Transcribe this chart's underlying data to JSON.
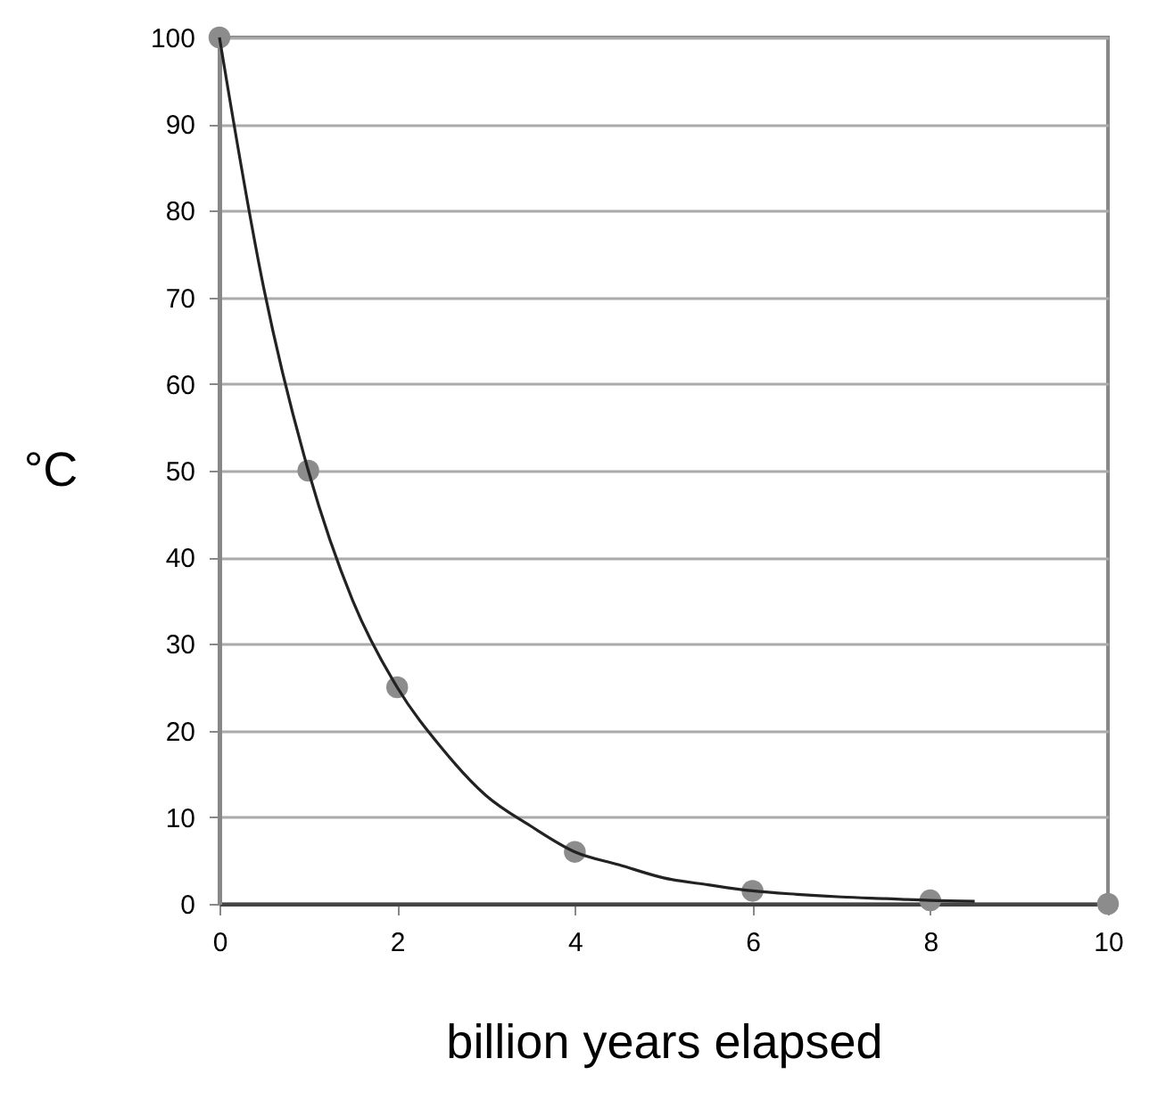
{
  "chart_data": {
    "type": "scatter",
    "xlabel": "billion years elapsed",
    "ylabel": "°C",
    "xlim": [
      0,
      10
    ],
    "ylim": [
      0,
      100
    ],
    "xticks": [
      0,
      2,
      4,
      6,
      8,
      10
    ],
    "yticks": [
      0,
      10,
      20,
      30,
      40,
      50,
      60,
      70,
      80,
      90,
      100
    ],
    "grid": "y",
    "series": [
      {
        "marker": "circle",
        "color": "#8c8c8c",
        "x": [
          0,
          1,
          2,
          4,
          6,
          8,
          10
        ],
        "values": [
          100,
          50,
          25,
          6,
          1.5,
          0.4,
          0
        ]
      },
      {
        "type": "line",
        "marker": "none",
        "color": "#222222",
        "line_style": "solid",
        "x": [
          0,
          0.5,
          1,
          1.5,
          2,
          2.5,
          3,
          3.5,
          4,
          4.5,
          5,
          5.5,
          6,
          6.5,
          7,
          7.5,
          8,
          8.5
        ],
        "values": [
          100,
          71,
          50,
          35,
          25,
          18,
          12.5,
          9,
          6,
          4.5,
          3,
          2.2,
          1.5,
          1.1,
          0.8,
          0.6,
          0.4,
          0.3
        ]
      }
    ]
  }
}
